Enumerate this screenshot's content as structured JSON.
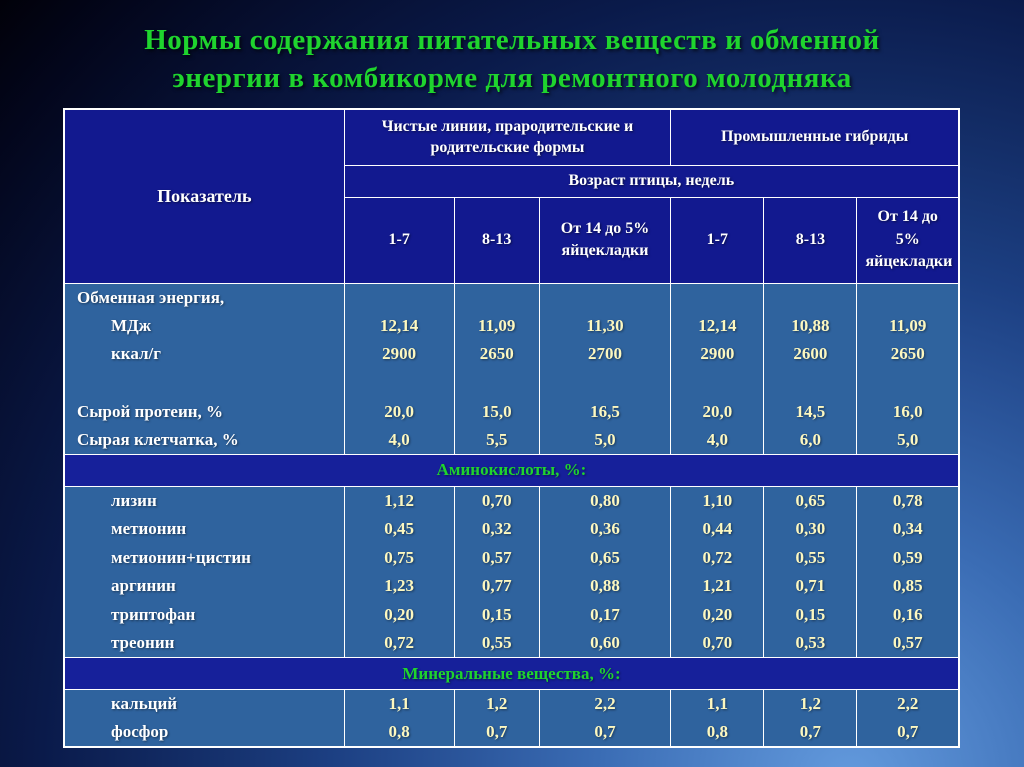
{
  "title": {
    "line1": "Нормы содержания питательных веществ и обменной",
    "line2": "энергии в комбикорме для ремонтного молодняка"
  },
  "colors": {
    "accent-green": "#1fd42e",
    "value-yellow": "#fdf8c0",
    "body-blue": "#2f639e",
    "header-navy": "#12198f",
    "section-blue": "#16209a",
    "border-white": "#ffffff"
  },
  "table": {
    "indicator_header": "Показатель",
    "group_headers": [
      "Чистые линии, прародительские и родительские формы",
      "Промышленные гибриды"
    ],
    "age_header": "Возраст птицы, недель",
    "column_headers": [
      "1-7",
      "8-13",
      "От 14 до 5% яйцекладки",
      "1-7",
      "8-13",
      "От 14 до 5% яйцекладки"
    ],
    "rows": [
      {
        "type": "data",
        "label": "Обменная энергия,",
        "indent": false,
        "values": [
          "",
          "",
          "",
          "",
          "",
          ""
        ]
      },
      {
        "type": "data",
        "label": "МДж",
        "indent": true,
        "values": [
          "12,14",
          "11,09",
          "11,30",
          "12,14",
          "10,88",
          "11,09"
        ]
      },
      {
        "type": "data",
        "label": "ккал/г",
        "indent": true,
        "values": [
          "2900",
          "2650",
          "2700",
          "2900",
          "2600",
          "2650"
        ]
      },
      {
        "type": "data",
        "label": "",
        "indent": false,
        "values": [
          "",
          "",
          "",
          "",
          "",
          ""
        ]
      },
      {
        "type": "data",
        "label": "Сырой протеин, %",
        "indent": false,
        "values": [
          "20,0",
          "15,0",
          "16,5",
          "20,0",
          "14,5",
          "16,0"
        ]
      },
      {
        "type": "data",
        "label": "Сырая клетчатка, %",
        "indent": false,
        "values": [
          "4,0",
          "5,5",
          "5,0",
          "4,0",
          "6,0",
          "5,0"
        ]
      },
      {
        "type": "section",
        "label": "Аминокислоты, %:"
      },
      {
        "type": "data",
        "label": "лизин",
        "indent": true,
        "values": [
          "1,12",
          "0,70",
          "0,80",
          "1,10",
          "0,65",
          "0,78"
        ]
      },
      {
        "type": "data",
        "label": "метионин",
        "indent": true,
        "values": [
          "0,45",
          "0,32",
          "0,36",
          "0,44",
          "0,30",
          "0,34"
        ]
      },
      {
        "type": "data",
        "label": "метионин+цистин",
        "indent": true,
        "values": [
          "0,75",
          "0,57",
          "0,65",
          "0,72",
          "0,55",
          "0,59"
        ]
      },
      {
        "type": "data",
        "label": "аргинин",
        "indent": true,
        "values": [
          "1,23",
          "0,77",
          "0,88",
          "1,21",
          "0,71",
          "0,85"
        ]
      },
      {
        "type": "data",
        "label": "триптофан",
        "indent": true,
        "values": [
          "0,20",
          "0,15",
          "0,17",
          "0,20",
          "0,15",
          "0,16"
        ]
      },
      {
        "type": "data",
        "label": "треонин",
        "indent": true,
        "values": [
          "0,72",
          "0,55",
          "0,60",
          "0,70",
          "0,53",
          "0,57"
        ]
      },
      {
        "type": "section",
        "label": "Минеральные вещества, %:"
      },
      {
        "type": "data",
        "label": "кальций",
        "indent": true,
        "values": [
          "1,1",
          "1,2",
          "2,2",
          "1,1",
          "1,2",
          "2,2"
        ]
      },
      {
        "type": "data",
        "label": "фосфор",
        "indent": true,
        "values": [
          "0,8",
          "0,7",
          "0,7",
          "0,8",
          "0,7",
          "0,7"
        ]
      }
    ]
  }
}
